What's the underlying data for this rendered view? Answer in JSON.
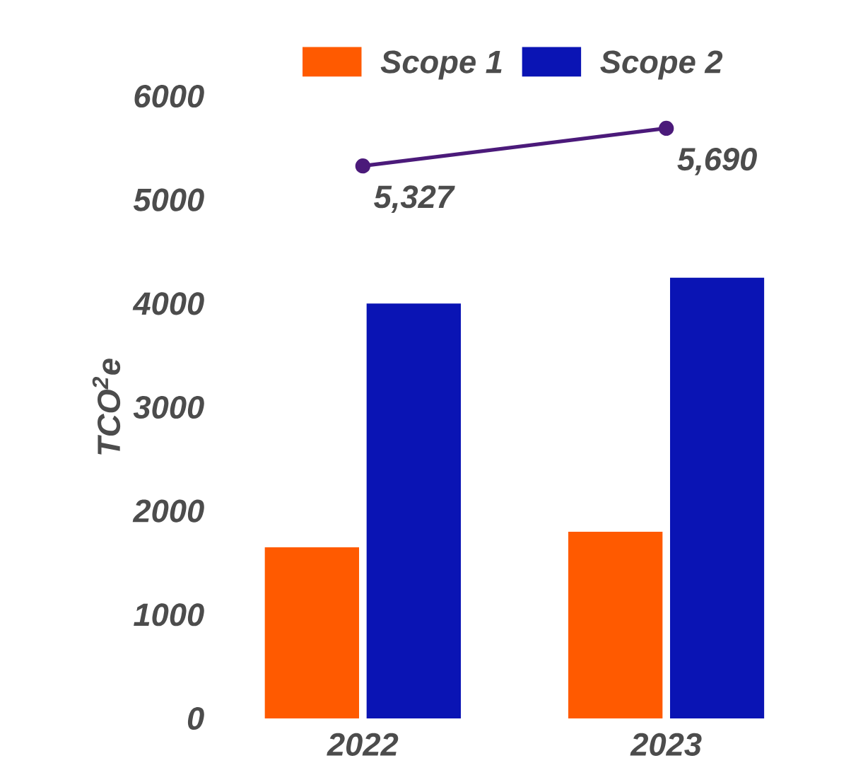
{
  "chart_data": {
    "type": "bar",
    "ylabel": "TCO$^{2}$e",
    "categories": [
      "2022",
      "2023"
    ],
    "series": [
      {
        "name": "Scope 1",
        "color": "#ff5a00",
        "values": [
          1650,
          1800
        ]
      },
      {
        "name": "Scope 2",
        "color": "#0a14b4",
        "values": [
          4000,
          4250
        ]
      },
      {
        "type": "line",
        "color": "#4b1a7a",
        "values": [
          5327,
          5690
        ],
        "value_labels": [
          "5,327",
          "5,690"
        ],
        "marker": "circle"
      }
    ],
    "ylim": [
      0,
      6000
    ],
    "yticks": [
      0,
      1000,
      2000,
      3000,
      4000,
      5000,
      6000
    ],
    "grid": false,
    "legend": "top"
  }
}
